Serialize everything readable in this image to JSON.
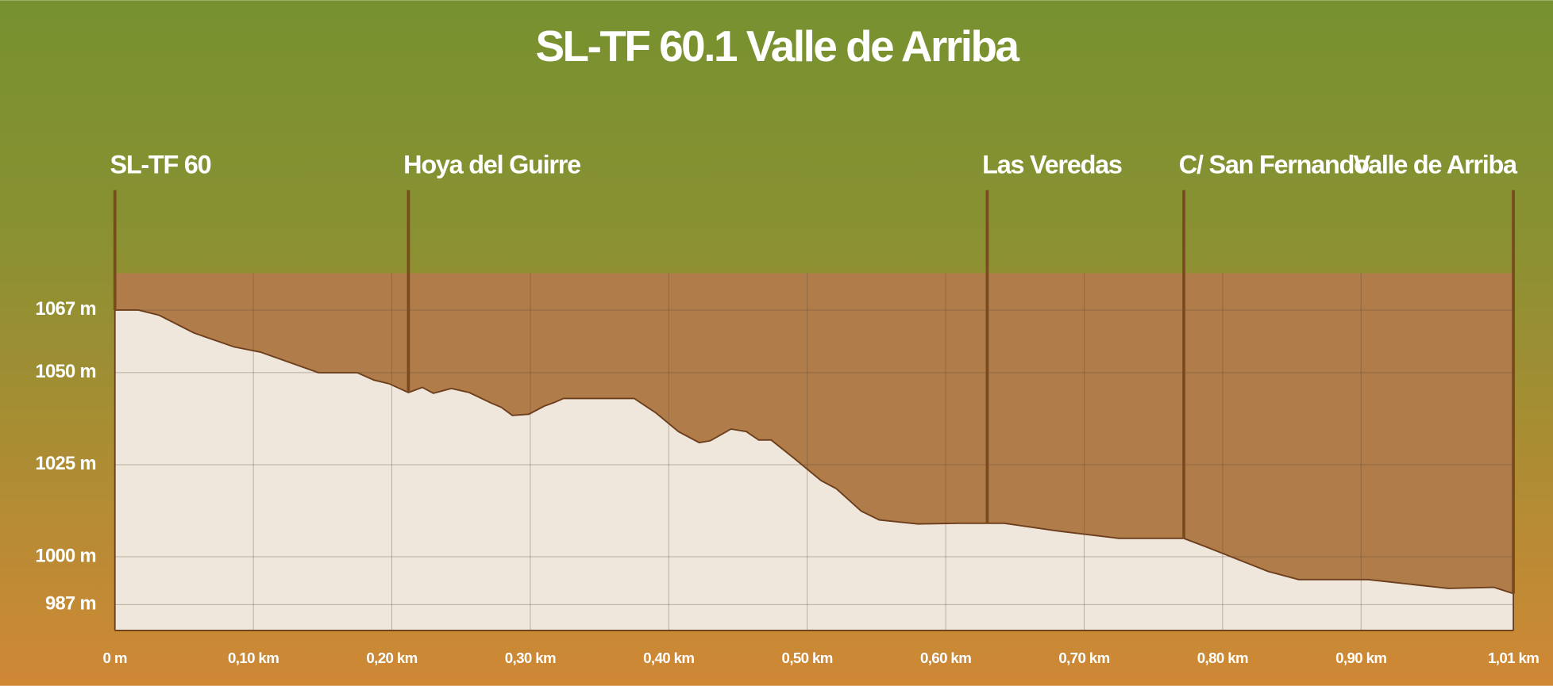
{
  "chart_data": {
    "type": "area",
    "title": "SL-TF 60.1 Valle de Arriba",
    "x": [
      0,
      0.017,
      0.032,
      0.057,
      0.086,
      0.105,
      0.147,
      0.175,
      0.187,
      0.198,
      0.212,
      0.222,
      0.23,
      0.243,
      0.256,
      0.272,
      0.279,
      0.287,
      0.299,
      0.31,
      0.318,
      0.324,
      0.375,
      0.391,
      0.407,
      0.422,
      0.43,
      0.445,
      0.456,
      0.465,
      0.474,
      0.49,
      0.51,
      0.521,
      0.539,
      0.552,
      0.58,
      0.609,
      0.642,
      0.681,
      0.725,
      0.772,
      0.79,
      0.833,
      0.855,
      0.905,
      0.963,
      0.996,
      1.01
    ],
    "values": [
      1067,
      1067,
      1065.6,
      1060.8,
      1057,
      1055.6,
      1050,
      1050,
      1048,
      1047,
      1044.6,
      1046,
      1044.4,
      1045.7,
      1044.6,
      1041.7,
      1040.6,
      1038.4,
      1038.7,
      1040.9,
      1042,
      1043,
      1043,
      1039,
      1034,
      1031,
      1031.5,
      1034.7,
      1034,
      1031.7,
      1031.7,
      1026.9,
      1020.7,
      1018.5,
      1012.4,
      1010,
      1008.9,
      1009.1,
      1009.1,
      1007,
      1005,
      1005,
      1002.4,
      996,
      993.8,
      993.8,
      991.4,
      991.7,
      990
    ],
    "xlim": [
      0,
      1.01
    ],
    "ylim": [
      980,
      1077
    ],
    "xticks": [
      {
        "value": 0,
        "label": "0 m"
      },
      {
        "value": 0.1,
        "label": "0,10 km"
      },
      {
        "value": 0.2,
        "label": "0,20 km"
      },
      {
        "value": 0.3,
        "label": "0,30 km"
      },
      {
        "value": 0.4,
        "label": "0,40 km"
      },
      {
        "value": 0.5,
        "label": "0,50 km"
      },
      {
        "value": 0.6,
        "label": "0,60 km"
      },
      {
        "value": 0.7,
        "label": "0,70 km"
      },
      {
        "value": 0.8,
        "label": "0,80 km"
      },
      {
        "value": 0.9,
        "label": "0,90 km"
      },
      {
        "value": 1.01,
        "label": "1,01 km"
      }
    ],
    "yticks": [
      {
        "value": 1067,
        "label": "1067 m"
      },
      {
        "value": 1050,
        "label": "1050 m"
      },
      {
        "value": 1025,
        "label": "1025 m"
      },
      {
        "value": 1000,
        "label": "1000 m"
      },
      {
        "value": 987,
        "label": "987 m"
      }
    ],
    "annotations": [
      {
        "label": "SL-TF 60",
        "x": 0
      },
      {
        "label": "Hoya del Guirre",
        "x": 0.212
      },
      {
        "label": "Las Veredas",
        "x": 0.63
      },
      {
        "label": "C/ San Fernando",
        "x": 0.772
      },
      {
        "label": "Valle de Arriba",
        "x": 1.01
      }
    ],
    "grid": true,
    "color": "#efe6dc",
    "line_color": "#6b3e1c",
    "plot_background": "#b07c4a"
  }
}
